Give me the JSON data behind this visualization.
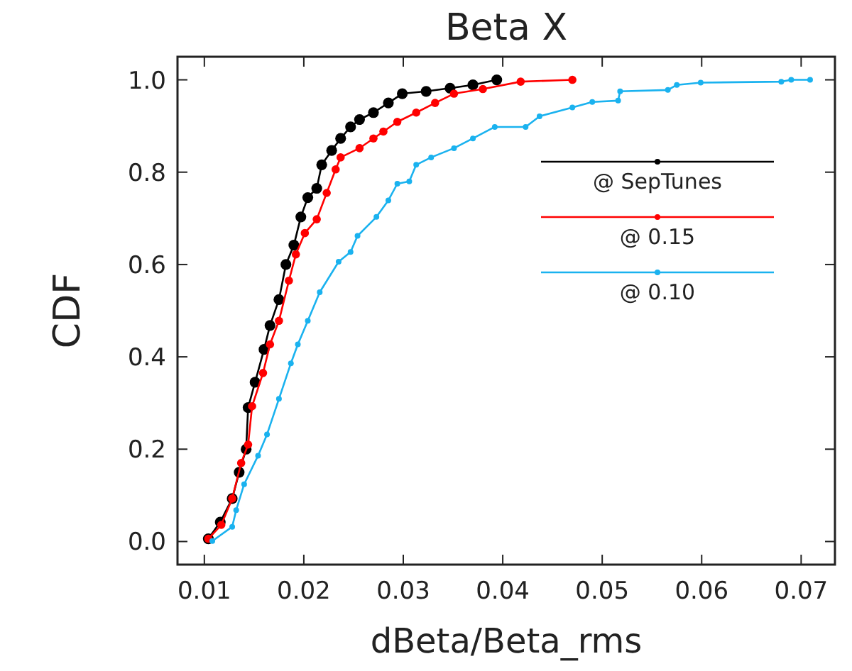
{
  "chart_data": {
    "type": "line",
    "title": "Beta X",
    "xlabel": "dBeta/Beta_rms",
    "ylabel": "CDF",
    "xlim": [
      0.0073,
      0.0734
    ],
    "ylim": [
      -0.05,
      1.05
    ],
    "xticks": [
      0.01,
      0.02,
      0.03,
      0.04,
      0.05,
      0.06,
      0.07
    ],
    "yticks": [
      {
        "value": 0,
        "label": "0.0"
      },
      {
        "value": 0.2,
        "label": "0.2"
      },
      {
        "value": 0.4,
        "label": "0.4"
      },
      {
        "value": 0.6,
        "label": "0.6"
      },
      {
        "value": 0.8,
        "label": "0.8"
      },
      {
        "value": 1,
        "label": "1.0"
      }
    ],
    "grid": false,
    "legend": "top right",
    "marker": "circle",
    "line_style": "solid",
    "series": [
      {
        "name": "@ SepTunes",
        "color": "#000000",
        "x": [
          0.0104,
          0.0116,
          0.0128,
          0.0135,
          0.0142,
          0.0144,
          0.0151,
          0.016,
          0.0166,
          0.0175,
          0.0182,
          0.019,
          0.0197,
          0.0204,
          0.0213,
          0.0218,
          0.0228,
          0.0237,
          0.0247,
          0.0256,
          0.027,
          0.0285,
          0.0299,
          0.0323,
          0.0347,
          0.037,
          0.0394
        ],
        "values": [
          0.006,
          0.042,
          0.093,
          0.15,
          0.2,
          0.29,
          0.345,
          0.416,
          0.468,
          0.524,
          0.6,
          0.642,
          0.703,
          0.745,
          0.765,
          0.816,
          0.847,
          0.873,
          0.898,
          0.914,
          0.929,
          0.95,
          0.97,
          0.975,
          0.982,
          0.989,
          1.0
        ]
      },
      {
        "name": "@ 0.15",
        "color": "#ff0000",
        "x": [
          0.0104,
          0.0117,
          0.0128,
          0.0137,
          0.0144,
          0.0148,
          0.0159,
          0.0166,
          0.0175,
          0.0185,
          0.0192,
          0.0201,
          0.0213,
          0.0223,
          0.0232,
          0.0237,
          0.0256,
          0.027,
          0.028,
          0.0294,
          0.0313,
          0.0332,
          0.0351,
          0.038,
          0.0418,
          0.047
        ],
        "values": [
          0.006,
          0.036,
          0.093,
          0.17,
          0.21,
          0.293,
          0.365,
          0.427,
          0.478,
          0.565,
          0.622,
          0.668,
          0.698,
          0.755,
          0.806,
          0.832,
          0.852,
          0.873,
          0.888,
          0.909,
          0.929,
          0.95,
          0.97,
          0.98,
          0.996,
          1.0
        ]
      },
      {
        "name": "@ 0.10",
        "color": "#1ab2ef",
        "x": [
          0.0108,
          0.0128,
          0.0132,
          0.014,
          0.0154,
          0.0163,
          0.0175,
          0.0187,
          0.0194,
          0.0204,
          0.0216,
          0.0235,
          0.0247,
          0.0254,
          0.0273,
          0.0285,
          0.0294,
          0.0306,
          0.0313,
          0.0328,
          0.0351,
          0.037,
          0.0392,
          0.0423,
          0.0437,
          0.047,
          0.049,
          0.0516,
          0.0518,
          0.0566,
          0.0575,
          0.0599,
          0.068,
          0.069,
          0.0709
        ],
        "values": [
          0.001,
          0.032,
          0.068,
          0.124,
          0.186,
          0.232,
          0.309,
          0.386,
          0.427,
          0.478,
          0.54,
          0.606,
          0.627,
          0.662,
          0.703,
          0.739,
          0.775,
          0.78,
          0.816,
          0.832,
          0.852,
          0.873,
          0.898,
          0.898,
          0.921,
          0.94,
          0.952,
          0.955,
          0.975,
          0.978,
          0.989,
          0.994,
          0.996,
          1.0,
          1.0
        ]
      }
    ]
  }
}
